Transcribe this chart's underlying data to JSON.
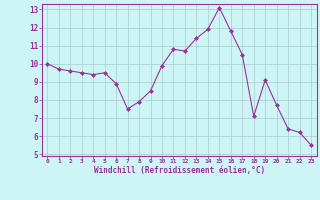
{
  "x": [
    0,
    1,
    2,
    3,
    4,
    5,
    6,
    7,
    8,
    9,
    10,
    11,
    12,
    13,
    14,
    15,
    16,
    17,
    18,
    19,
    20,
    21,
    22,
    23
  ],
  "y": [
    10.0,
    9.7,
    9.6,
    9.5,
    9.4,
    9.5,
    8.9,
    7.5,
    7.9,
    8.5,
    9.9,
    10.8,
    10.7,
    11.4,
    11.9,
    13.1,
    11.8,
    10.5,
    7.1,
    9.1,
    7.7,
    6.4,
    6.2,
    5.5
  ],
  "line_color": "#993399",
  "marker": "D",
  "marker_size": 2,
  "bg_color": "#cef5f5",
  "grid_color": "#aacccc",
  "xlabel": "Windchill (Refroidissement éolien,°C)",
  "xlim": [
    -0.5,
    23.5
  ],
  "ylim": [
    4.9,
    13.3
  ],
  "yticks": [
    5,
    6,
    7,
    8,
    9,
    10,
    11,
    12,
    13
  ],
  "xticks": [
    0,
    1,
    2,
    3,
    4,
    5,
    6,
    7,
    8,
    9,
    10,
    11,
    12,
    13,
    14,
    15,
    16,
    17,
    18,
    19,
    20,
    21,
    22,
    23
  ],
  "label_color": "#993399",
  "spine_color": "#993399"
}
